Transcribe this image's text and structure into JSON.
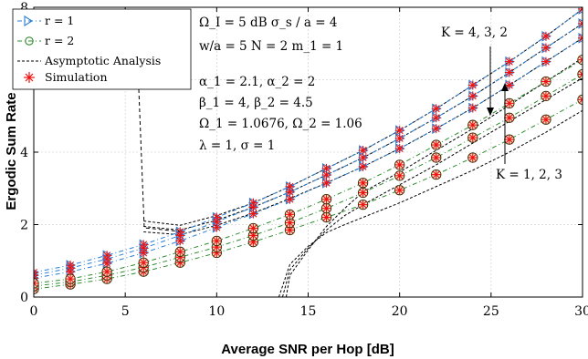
{
  "chart_data": {
    "type": "line",
    "title": "",
    "xlabel": "Average SNR per Hop  [dB]",
    "ylabel": "Ergodic Sum Rate",
    "xlim": [
      0,
      30
    ],
    "ylim": [
      0,
      8
    ],
    "xticks": [
      0,
      5,
      10,
      15,
      20,
      25,
      30
    ],
    "yticks": [
      0,
      2,
      4,
      6,
      8
    ],
    "grid": true,
    "legend_position": "top-left",
    "legend": [
      {
        "label": "r = 1",
        "style": "dash-dot, triangle markers",
        "color": "#2a7fd4"
      },
      {
        "label": "r = 2",
        "style": "dash-dot, circle markers",
        "color": "#2e8b2e"
      },
      {
        "label": "Asymptotic Analysis",
        "style": "black dashed",
        "color": "#000000"
      },
      {
        "label": "Simulation",
        "style": "red asterisk",
        "color": "#ee1111"
      }
    ],
    "parameter_box": [
      "Ω_I = 5 dB   σ_s / a = 4",
      "w/a = 5   N = 2   m_1 = 1",
      "α_1 = 2.1, α_2 = 2",
      "β_1 = 4, β_2 = 4.5",
      "Ω_1 = 1.0676, Ω_2 = 1.06",
      "λ = 1, σ = 1"
    ],
    "annotations": [
      "K = 4, 3, 2",
      "K = 1, 2, 3"
    ],
    "x": [
      0,
      2,
      4,
      6,
      8,
      10,
      12,
      14,
      16,
      18,
      20,
      22,
      24,
      26,
      28,
      30
    ],
    "series": [
      {
        "name": "r = 1, K = 4",
        "values": [
          0.68,
          0.88,
          1.15,
          1.45,
          1.8,
          2.2,
          2.6,
          3.05,
          3.55,
          4.05,
          4.6,
          5.2,
          5.85,
          6.5,
          7.2,
          7.95
        ]
      },
      {
        "name": "r = 1, K = 3",
        "values": [
          0.6,
          0.8,
          1.05,
          1.35,
          1.7,
          2.08,
          2.48,
          2.9,
          3.37,
          3.85,
          4.38,
          4.95,
          5.55,
          6.2,
          6.88,
          7.55
        ]
      },
      {
        "name": "r = 1, K = 2",
        "values": [
          0.52,
          0.7,
          0.93,
          1.22,
          1.55,
          1.92,
          2.3,
          2.7,
          3.15,
          3.6,
          4.1,
          4.65,
          5.22,
          5.85,
          6.5,
          7.15
        ]
      },
      {
        "name": "r = 2, K = 1",
        "values": [
          0.22,
          0.35,
          0.5,
          0.7,
          0.95,
          1.22,
          1.52,
          1.85,
          2.2,
          2.55,
          2.95,
          3.38,
          3.85,
          4.35,
          4.9,
          5.45
        ]
      },
      {
        "name": "r = 2, K = 2",
        "values": [
          0.3,
          0.42,
          0.6,
          0.82,
          1.1,
          1.38,
          1.7,
          2.05,
          2.45,
          2.88,
          3.35,
          3.85,
          4.4,
          4.95,
          5.55,
          6.15
        ]
      },
      {
        "name": "r = 2, K = 3",
        "values": [
          0.38,
          0.5,
          0.7,
          0.95,
          1.25,
          1.55,
          1.9,
          2.28,
          2.7,
          3.15,
          3.65,
          4.2,
          4.75,
          5.35,
          5.95,
          6.55
        ]
      }
    ],
    "asymptotes": [
      {
        "x": [
          6,
          8,
          10,
          12,
          14,
          16,
          18,
          20,
          22,
          24,
          26,
          28,
          30
        ],
        "values": [
          2.1,
          1.98,
          2.25,
          2.6,
          3.05,
          3.55,
          4.05,
          4.6,
          5.2,
          5.85,
          6.5,
          7.2,
          7.95
        ]
      },
      {
        "x": [
          6,
          8,
          10,
          12,
          14,
          16,
          18,
          20,
          22,
          24,
          26,
          28,
          30
        ],
        "values": [
          1.95,
          1.85,
          2.12,
          2.48,
          2.9,
          3.37,
          3.85,
          4.38,
          4.95,
          5.55,
          6.2,
          6.88,
          7.55
        ]
      },
      {
        "x": [
          6,
          8,
          10,
          12,
          14,
          16,
          18,
          20,
          22,
          24,
          26,
          28,
          30
        ],
        "values": [
          1.8,
          1.72,
          1.98,
          2.32,
          2.72,
          3.15,
          3.6,
          4.1,
          4.65,
          5.22,
          5.85,
          6.5,
          7.15
        ]
      },
      {
        "x": [
          13.4,
          14,
          15,
          16,
          17,
          18,
          20,
          22,
          24,
          26,
          28,
          30
        ],
        "values": [
          0,
          0.9,
          1.4,
          1.78,
          2.0,
          2.2,
          2.6,
          3.05,
          3.5,
          4.0,
          4.55,
          5.15
        ]
      },
      {
        "x": [
          13.6,
          14,
          15,
          16,
          17,
          18,
          20,
          22,
          24,
          26,
          28,
          30
        ],
        "values": [
          0,
          0.75,
          1.35,
          1.85,
          2.25,
          2.55,
          3.1,
          3.65,
          4.25,
          4.85,
          5.45,
          6.05
        ]
      },
      {
        "x": [
          13.8,
          14,
          15,
          16,
          17,
          18,
          20,
          22,
          24,
          26,
          28,
          30
        ],
        "values": [
          0,
          0.6,
          1.3,
          1.95,
          2.45,
          2.9,
          3.45,
          4.05,
          4.65,
          5.3,
          5.95,
          6.6
        ]
      }
    ]
  }
}
